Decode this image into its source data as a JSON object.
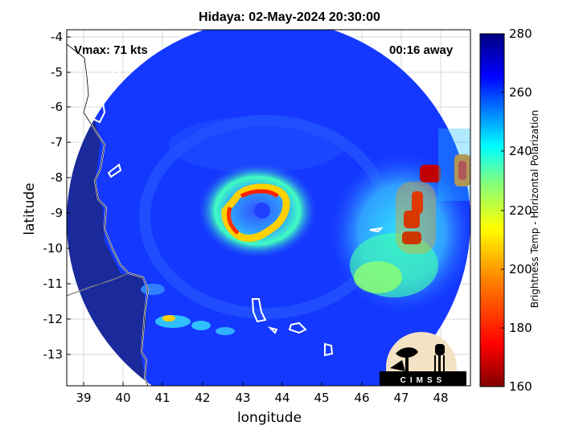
{
  "title": "Hidaya: 02-May-2024 20:30:00",
  "vmax_text": "Vmax: 71 kts",
  "away_text": "00:16 away",
  "xlabel": "longitude",
  "ylabel": "latitude",
  "x_ticks": [
    "39",
    "40",
    "41",
    "42",
    "43",
    "44",
    "45",
    "46",
    "47",
    "48"
  ],
  "y_ticks": [
    "-4",
    "-5",
    "-6",
    "-7",
    "-8",
    "-9",
    "-10",
    "-11",
    "-12",
    "-13"
  ],
  "colorbar": {
    "label": "Brightness Temp - Horizontal Polarization",
    "ticks": [
      "280",
      "260",
      "240",
      "220",
      "200",
      "180",
      "160"
    ],
    "range": [
      160,
      280
    ],
    "colors": [
      "#800000",
      "#ff0000",
      "#ff8000",
      "#ffff00",
      "#80ff80",
      "#00ffff",
      "#0080ff",
      "#0000ff",
      "#000080"
    ]
  },
  "logo_text": "CIMSS",
  "colors": {
    "background_cold": "#1030ff",
    "land_warm": "#1a2a9a",
    "coast": "#ffffff"
  }
}
